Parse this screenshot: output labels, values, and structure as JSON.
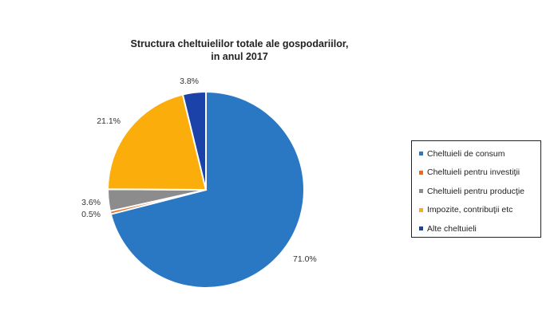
{
  "chart_data": {
    "type": "pie",
    "title_lines": [
      "Structura cheltuielilor totale ale gospodariilor,",
      "in anul 2017"
    ],
    "categories": [
      "Cheltuieli de consum",
      "Cheltuieli pentru investiţii",
      "Cheltuieli pentru producţie",
      "Impozite, contribuţii etc",
      "Alte cheltuieli"
    ],
    "values": [
      71.0,
      0.5,
      3.6,
      21.1,
      3.8
    ],
    "labels": [
      "71.0%",
      "0.5%",
      "3.6%",
      "21.1%",
      "3.8%"
    ],
    "colors": [
      "#2a78c4",
      "#e86a1e",
      "#8c8c8c",
      "#fbad0b",
      "#1a42a8"
    ],
    "legend_position": "right",
    "start": "top",
    "direction": "clockwise"
  }
}
